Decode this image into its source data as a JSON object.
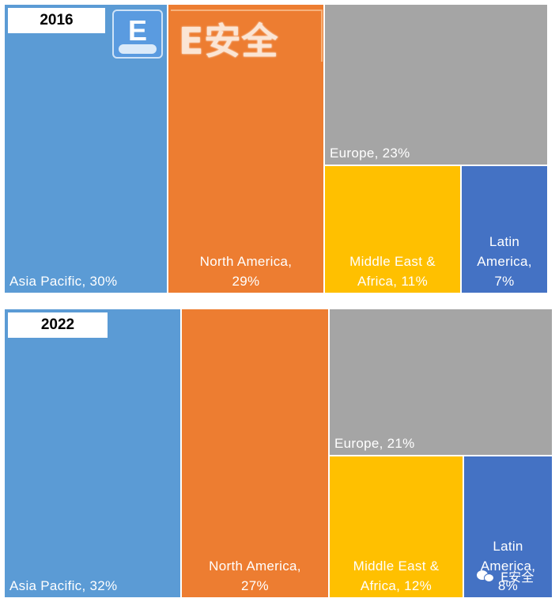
{
  "watermark": {
    "logo_letter": "E",
    "logo_text": "E安全",
    "footer_text": "E安全"
  },
  "chart_data": [
    {
      "type": "treemap",
      "title": "2016",
      "regions": [
        {
          "name": "Asia Pacific",
          "value": 30,
          "label": "Asia Pacific, 30%",
          "color": "#5b9bd5"
        },
        {
          "name": "North America",
          "value": 29,
          "label": "North America,\n29%",
          "color": "#ed7d31"
        },
        {
          "name": "Europe",
          "value": 23,
          "label": "Europe, 23%",
          "color": "#a5a5a5"
        },
        {
          "name": "Middle East & Africa",
          "value": 11,
          "label": "Middle East &\nAfrica, 11%",
          "color": "#ffc000"
        },
        {
          "name": "Latin America",
          "value": 7,
          "label": "Latin\nAmerica,\n7%",
          "color": "#4472c4"
        }
      ]
    },
    {
      "type": "treemap",
      "title": "2022",
      "regions": [
        {
          "name": "Asia Pacific",
          "value": 32,
          "label": "Asia Pacific, 32%",
          "color": "#5b9bd5"
        },
        {
          "name": "North America",
          "value": 27,
          "label": "North America,\n27%",
          "color": "#ed7d31"
        },
        {
          "name": "Europe",
          "value": 21,
          "label": "Europe, 21%",
          "color": "#a5a5a5"
        },
        {
          "name": "Middle East & Africa",
          "value": 12,
          "label": "Middle East &\nAfrica, 12%",
          "color": "#ffc000"
        },
        {
          "name": "Latin America",
          "value": 8,
          "label": "Latin\nAmerica,\n8%",
          "color": "#4472c4"
        }
      ]
    }
  ]
}
